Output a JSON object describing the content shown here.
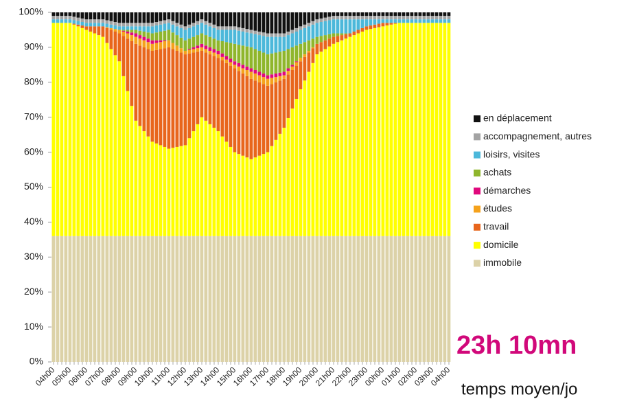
{
  "chart_data": {
    "type": "stacked_bar",
    "annotations": [
      "23h 10mn",
      "temps moyen/jo"
    ],
    "categories": [
      "04h00",
      null,
      null,
      null,
      "05h00",
      null,
      null,
      null,
      "06h00",
      null,
      null,
      null,
      "07h00",
      null,
      null,
      null,
      "08h00",
      null,
      null,
      null,
      "09h00",
      null,
      null,
      null,
      "10h00",
      null,
      null,
      null,
      "11h00",
      null,
      null,
      null,
      "12h00",
      null,
      null,
      null,
      "13h00",
      null,
      null,
      null,
      "14h00",
      null,
      null,
      null,
      "15h00",
      null,
      null,
      null,
      "16h00",
      null,
      null,
      null,
      "17h00",
      null,
      null,
      null,
      "18h00",
      null,
      null,
      null,
      "19h00",
      null,
      null,
      null,
      "20h00",
      null,
      null,
      null,
      "21h00",
      null,
      null,
      null,
      "22h00",
      null,
      null,
      null,
      "23h00",
      null,
      null,
      null,
      "00h00",
      null,
      null,
      null,
      "01h00",
      null,
      null,
      null,
      "02h00",
      null,
      null,
      null,
      "03h00",
      null,
      null,
      null,
      "04h00"
    ],
    "series": [
      {
        "name": "immobile",
        "color": "#dcd2a8",
        "values": [
          36,
          36,
          36,
          36,
          36,
          36,
          36,
          36,
          36,
          36,
          36,
          36,
          36,
          36,
          36,
          36,
          36,
          36,
          36,
          36,
          36,
          36,
          36,
          36,
          36,
          36,
          36,
          36,
          36,
          36,
          36,
          36,
          36,
          36,
          36,
          36,
          36,
          36,
          36,
          36,
          36,
          36,
          36,
          36,
          36,
          36,
          36,
          36,
          36,
          36,
          36,
          36,
          36,
          36,
          36,
          36,
          36,
          36,
          36,
          36,
          36,
          36,
          36,
          36,
          36,
          36,
          36,
          36,
          36,
          36,
          36,
          36,
          36,
          36,
          36,
          36,
          36,
          36,
          36,
          36,
          36,
          36,
          36,
          36,
          36,
          36,
          36,
          36,
          36,
          36,
          36,
          36,
          36,
          36,
          36,
          36,
          36
        ]
      },
      {
        "name": "domicile",
        "color": "#ffff00",
        "values": [
          61,
          61,
          61,
          61,
          61,
          60.5,
          60,
          59.5,
          59,
          58.5,
          58,
          57.5,
          57,
          55.25,
          53.5,
          51.75,
          50,
          45.75,
          41.5,
          37.25,
          33,
          31.5,
          30,
          28.5,
          27,
          26.5,
          26,
          25.5,
          25,
          25.25,
          25.5,
          25.75,
          26,
          28,
          30,
          32,
          34,
          33,
          32,
          31,
          30,
          28.5,
          27,
          25.5,
          24,
          23.5,
          23,
          22.5,
          22,
          22.5,
          23,
          23.5,
          24,
          25.75,
          27.5,
          29.25,
          31,
          33.75,
          36.5,
          39.25,
          42,
          44.5,
          47,
          49.5,
          52,
          52.75,
          53.5,
          54.25,
          55,
          55.5,
          56,
          56.5,
          57,
          57.5,
          58,
          58.5,
          59,
          59.25,
          59.5,
          59.75,
          60,
          60.25,
          60.5,
          60.75,
          61,
          61,
          61,
          61,
          61,
          61,
          61,
          61,
          61,
          61,
          61,
          61,
          61
        ]
      },
      {
        "name": "travail",
        "color": "#e8661c",
        "values": [
          0,
          0,
          0,
          0,
          0,
          0.25,
          0.5,
          0.75,
          1,
          1.5,
          2,
          2.5,
          3,
          4.25,
          5.5,
          6.75,
          8,
          11.5,
          15,
          18.5,
          22,
          23,
          24,
          25,
          26,
          26.75,
          27.5,
          28.25,
          29,
          28.25,
          27.5,
          26.75,
          26,
          24.25,
          22.5,
          20.75,
          19,
          19.5,
          20,
          20.5,
          21,
          21.75,
          22.5,
          23.25,
          24,
          23.75,
          23.5,
          23.25,
          23,
          22,
          21,
          20,
          19,
          17.75,
          16.5,
          15.25,
          14,
          12.5,
          11,
          9.5,
          8,
          6.75,
          5.5,
          4.25,
          3,
          2.75,
          2.5,
          2.25,
          2,
          1.75,
          1.5,
          1.25,
          1,
          1,
          1,
          1,
          1,
          1,
          1,
          1,
          1,
          0.75,
          0.5,
          0.25,
          0,
          0,
          0,
          0,
          0,
          0,
          0,
          0,
          0,
          0,
          0,
          0,
          0
        ]
      },
      {
        "name": "études",
        "color": "#f5a21c",
        "values": [
          0,
          0,
          0,
          0,
          0,
          0,
          0,
          0,
          0,
          0,
          0,
          0,
          0,
          0.25,
          0.5,
          0.75,
          1,
          1.25,
          1.5,
          1.75,
          2,
          2,
          2,
          2,
          2,
          2,
          2,
          2,
          2,
          1.75,
          1.5,
          1.25,
          1,
          1,
          1,
          1,
          1,
          1,
          1,
          1,
          1,
          1,
          1,
          1,
          1,
          1.25,
          1.5,
          1.75,
          2,
          2,
          2,
          2,
          2,
          1.75,
          1.5,
          1.25,
          1,
          1,
          1,
          1,
          1,
          0.75,
          0.5,
          0.25,
          0,
          0,
          0,
          0,
          0,
          0,
          0,
          0,
          0,
          0,
          0,
          0,
          0,
          0,
          0,
          0,
          0,
          0,
          0,
          0,
          0,
          0,
          0,
          0,
          0,
          0,
          0,
          0,
          0,
          0,
          0,
          0,
          0
        ]
      },
      {
        "name": "démarches",
        "color": "#e0087c",
        "values": [
          0,
          0,
          0,
          0,
          0,
          0,
          0,
          0,
          0,
          0,
          0,
          0,
          0,
          0,
          0,
          0,
          0,
          0.25,
          0.5,
          0.75,
          1,
          1,
          1,
          1,
          1,
          0.75,
          0.5,
          0.25,
          0,
          0,
          0,
          0,
          0,
          0.25,
          0.5,
          0.75,
          1,
          1,
          1,
          1,
          1,
          1,
          1,
          1,
          1,
          1,
          1,
          1,
          1,
          1,
          1,
          1,
          1,
          1,
          1,
          1,
          1,
          0.75,
          0.5,
          0.25,
          0,
          0,
          0,
          0,
          0,
          0,
          0,
          0,
          0,
          0,
          0,
          0,
          0,
          0,
          0,
          0,
          0,
          0,
          0,
          0,
          0,
          0,
          0,
          0,
          0,
          0,
          0,
          0,
          0,
          0,
          0,
          0,
          0,
          0,
          0,
          0,
          0
        ]
      },
      {
        "name": "achats",
        "color": "#8fb62c",
        "values": [
          0,
          0,
          0,
          0,
          0,
          0,
          0,
          0,
          0,
          0,
          0,
          0,
          0,
          0,
          0,
          0,
          0,
          0.25,
          0.5,
          0.75,
          1,
          1.25,
          1.5,
          1.75,
          2,
          2.25,
          2.5,
          2.75,
          3,
          3,
          3,
          3,
          3,
          3,
          3,
          3,
          3,
          3,
          3,
          3,
          3,
          3.5,
          4,
          4.5,
          5,
          5.25,
          5.5,
          5.75,
          6,
          6,
          6,
          6,
          6,
          6,
          6,
          6,
          6,
          5.5,
          5,
          4.5,
          4,
          3.5,
          3,
          2.5,
          2,
          1.75,
          1.5,
          1.25,
          1,
          0.75,
          0.5,
          0.25,
          0,
          0,
          0,
          0,
          0,
          0,
          0,
          0,
          0,
          0,
          0,
          0,
          0,
          0,
          0,
          0,
          0,
          0,
          0,
          0,
          0,
          0,
          0,
          0,
          0
        ]
      },
      {
        "name": "loisirs, visites",
        "color": "#4cb8da",
        "values": [
          1,
          1,
          1,
          1,
          1,
          1,
          1,
          1,
          1,
          1,
          1,
          1,
          1,
          1,
          1,
          1,
          1,
          1,
          1,
          1,
          1,
          1.25,
          1.5,
          1.75,
          2,
          2,
          2,
          2,
          2,
          2.25,
          2.5,
          2.75,
          3,
          3,
          3,
          3,
          3,
          3,
          3,
          3,
          3,
          3.25,
          3.5,
          3.75,
          4,
          4,
          4,
          4,
          4,
          4.25,
          4.5,
          4.75,
          5,
          4.75,
          4.5,
          4.25,
          4,
          4,
          4,
          4,
          4,
          4,
          4,
          4,
          4,
          4,
          4,
          4,
          4,
          4,
          4,
          4,
          4,
          3.5,
          3,
          2.5,
          2,
          1.75,
          1.5,
          1.25,
          1,
          1,
          1,
          1,
          1,
          1,
          1,
          1,
          1,
          1,
          1,
          1,
          1,
          1,
          1,
          1,
          1
        ]
      },
      {
        "name": "accompagnement, autres",
        "color": "#a3a3a3",
        "values": [
          1,
          1,
          1,
          1,
          1,
          1,
          1,
          1,
          1,
          1,
          1,
          1,
          1,
          1,
          1,
          1,
          1,
          1,
          1,
          1,
          1,
          1,
          1,
          1,
          1,
          1,
          1,
          1,
          1,
          1,
          1,
          1,
          1,
          1,
          1,
          1,
          1,
          1,
          1,
          1,
          1,
          1,
          1,
          1,
          1,
          1,
          1,
          1,
          1,
          1,
          1,
          1,
          1,
          1,
          1,
          1,
          1,
          1,
          1,
          1,
          1,
          1,
          1,
          1,
          1,
          1,
          1,
          1,
          1,
          1,
          1,
          1,
          1,
          1,
          1,
          1,
          1,
          1,
          1,
          1,
          1,
          1,
          1,
          1,
          1,
          1,
          1,
          1,
          1,
          1,
          1,
          1,
          1,
          1,
          1,
          1,
          1
        ]
      },
      {
        "name": "en déplacement",
        "color": "#111111",
        "values": [
          1,
          1,
          1,
          1,
          1,
          1.25,
          1.5,
          1.75,
          2,
          2,
          2,
          2,
          2,
          2.25,
          2.5,
          2.75,
          3,
          3,
          3,
          3,
          3,
          3,
          3,
          3,
          3,
          2.75,
          2.5,
          2.25,
          2,
          2.5,
          3,
          3.5,
          4,
          3.5,
          3,
          2.5,
          2,
          2.5,
          3,
          3.5,
          4,
          4,
          4,
          4,
          4,
          4.25,
          4.5,
          4.75,
          5,
          5.25,
          5.5,
          5.75,
          6,
          6,
          6,
          6,
          6,
          5.5,
          5,
          4.5,
          4,
          3.5,
          3,
          2.5,
          2,
          1.75,
          1.5,
          1.25,
          1,
          1,
          1,
          1,
          1,
          1,
          1,
          1,
          1,
          1,
          1,
          1,
          1,
          1,
          1,
          1,
          1,
          1,
          1,
          1,
          1,
          1,
          1,
          1,
          1,
          1,
          1,
          1,
          1
        ]
      }
    ],
    "ylim": [
      0,
      100
    ],
    "yticks": [
      {
        "value": 0,
        "label": "0%"
      },
      {
        "value": 10,
        "label": "10%"
      },
      {
        "value": 20,
        "label": "20%"
      },
      {
        "value": 30,
        "label": "30%"
      },
      {
        "value": 40,
        "label": "40%"
      },
      {
        "value": 50,
        "label": "50%"
      },
      {
        "value": 60,
        "label": "60%"
      },
      {
        "value": 70,
        "label": "70%"
      },
      {
        "value": 80,
        "label": "80%"
      },
      {
        "value": 90,
        "label": "90%"
      },
      {
        "value": 100,
        "label": "100%"
      }
    ],
    "legend": "right",
    "grid": false
  }
}
